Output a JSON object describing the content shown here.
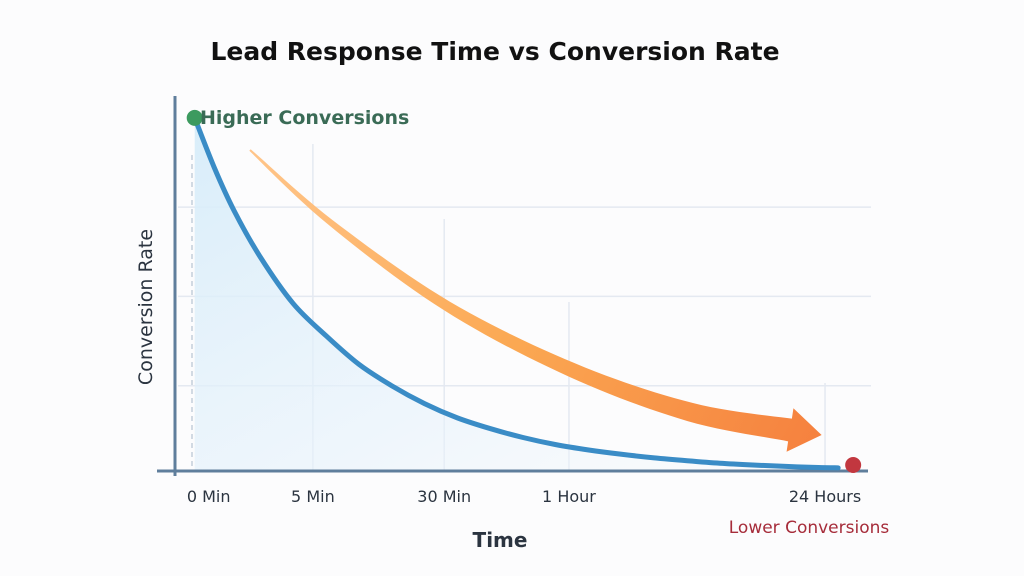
{
  "chart_data": {
    "type": "line",
    "title": "Lead Response Time vs Conversion Rate",
    "xlabel": "Time",
    "ylabel": "Conversion Rate",
    "categories": [
      "0 Min",
      "5 Min",
      "30 Min",
      "1 Hour",
      "24 Hours"
    ],
    "series": [
      {
        "name": "Conversion Rate",
        "color": "#3a8cc6",
        "x": [
          0,
          0.03,
          0.06,
          0.1,
          0.15,
          0.2,
          0.25,
          0.3,
          0.35,
          0.4,
          0.45,
          0.5,
          0.55,
          0.6,
          0.65,
          0.7,
          0.75,
          0.8,
          0.85,
          0.9,
          0.95,
          0.98
        ],
        "values": [
          1.0,
          0.86,
          0.74,
          0.61,
          0.48,
          0.39,
          0.31,
          0.25,
          0.2,
          0.16,
          0.13,
          0.105,
          0.085,
          0.07,
          0.058,
          0.048,
          0.04,
          0.033,
          0.028,
          0.024,
          0.021,
          0.02
        ]
      }
    ],
    "ylim": [
      0,
      1.05
    ],
    "xlim": [
      -0.03,
      1.03
    ],
    "grid": true,
    "yticks_gridlines": [
      0.25,
      0.5,
      0.75
    ],
    "xtick_positions": [
      0,
      0.18,
      0.38,
      0.57,
      0.96
    ],
    "annotations": {
      "start": {
        "label": "Higher Conversions",
        "color": "#3c9a5f",
        "text_color": "#3a6b56"
      },
      "end": {
        "label": "Lower Conversions",
        "color": "#c2373f",
        "text_color": "#a62c3a"
      },
      "trend_arrow": {
        "direction": "downward",
        "color_start": "#ffc58a",
        "color_end": "#f5803e"
      }
    }
  }
}
